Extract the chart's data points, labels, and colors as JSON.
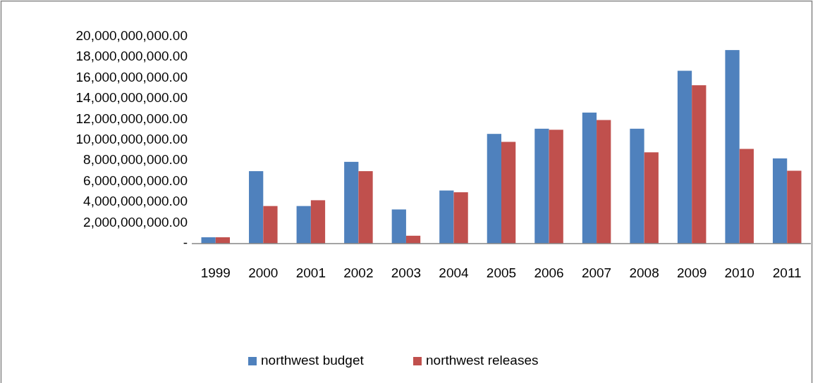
{
  "chart_data": {
    "type": "bar",
    "categories": [
      "1999",
      "2000",
      "2001",
      "2002",
      "2003",
      "2004",
      "2005",
      "2006",
      "2007",
      "2008",
      "2009",
      "2010",
      "2011"
    ],
    "series": [
      {
        "name": "northwest budget",
        "color": "#4f81bd",
        "values": [
          610000000,
          7000000000,
          3630000000,
          7900000000,
          3300000000,
          5130000000,
          10600000000,
          11100000000,
          12660000000,
          11100000000,
          16700000000,
          18700000000,
          8230000000
        ]
      },
      {
        "name": "northwest releases",
        "color": "#c0504d",
        "values": [
          610000000,
          3630000000,
          4190000000,
          7000000000,
          760000000,
          4960000000,
          9830000000,
          11000000000,
          11940000000,
          8820000000,
          15300000000,
          9150000000,
          7040000000
        ]
      }
    ],
    "ylim": [
      0,
      20000000000
    ],
    "yticks": [
      {
        "value": 0,
        "label": "-"
      },
      {
        "value": 2000000000,
        "label": "2,000,000,000.00"
      },
      {
        "value": 4000000000,
        "label": "4,000,000,000.00"
      },
      {
        "value": 6000000000,
        "label": "6,000,000,000.00"
      },
      {
        "value": 8000000000,
        "label": "8,000,000,000.00"
      },
      {
        "value": 10000000000,
        "label": "10,000,000,000.00"
      },
      {
        "value": 12000000000,
        "label": "12,000,000,000.00"
      },
      {
        "value": 14000000000,
        "label": "14,000,000,000.00"
      },
      {
        "value": 16000000000,
        "label": "16,000,000,000.00"
      },
      {
        "value": 18000000000,
        "label": "18,000,000,000.00"
      },
      {
        "value": 20000000000,
        "label": "20,000,000,000.00"
      }
    ],
    "grid": false,
    "legend": "bottom"
  }
}
